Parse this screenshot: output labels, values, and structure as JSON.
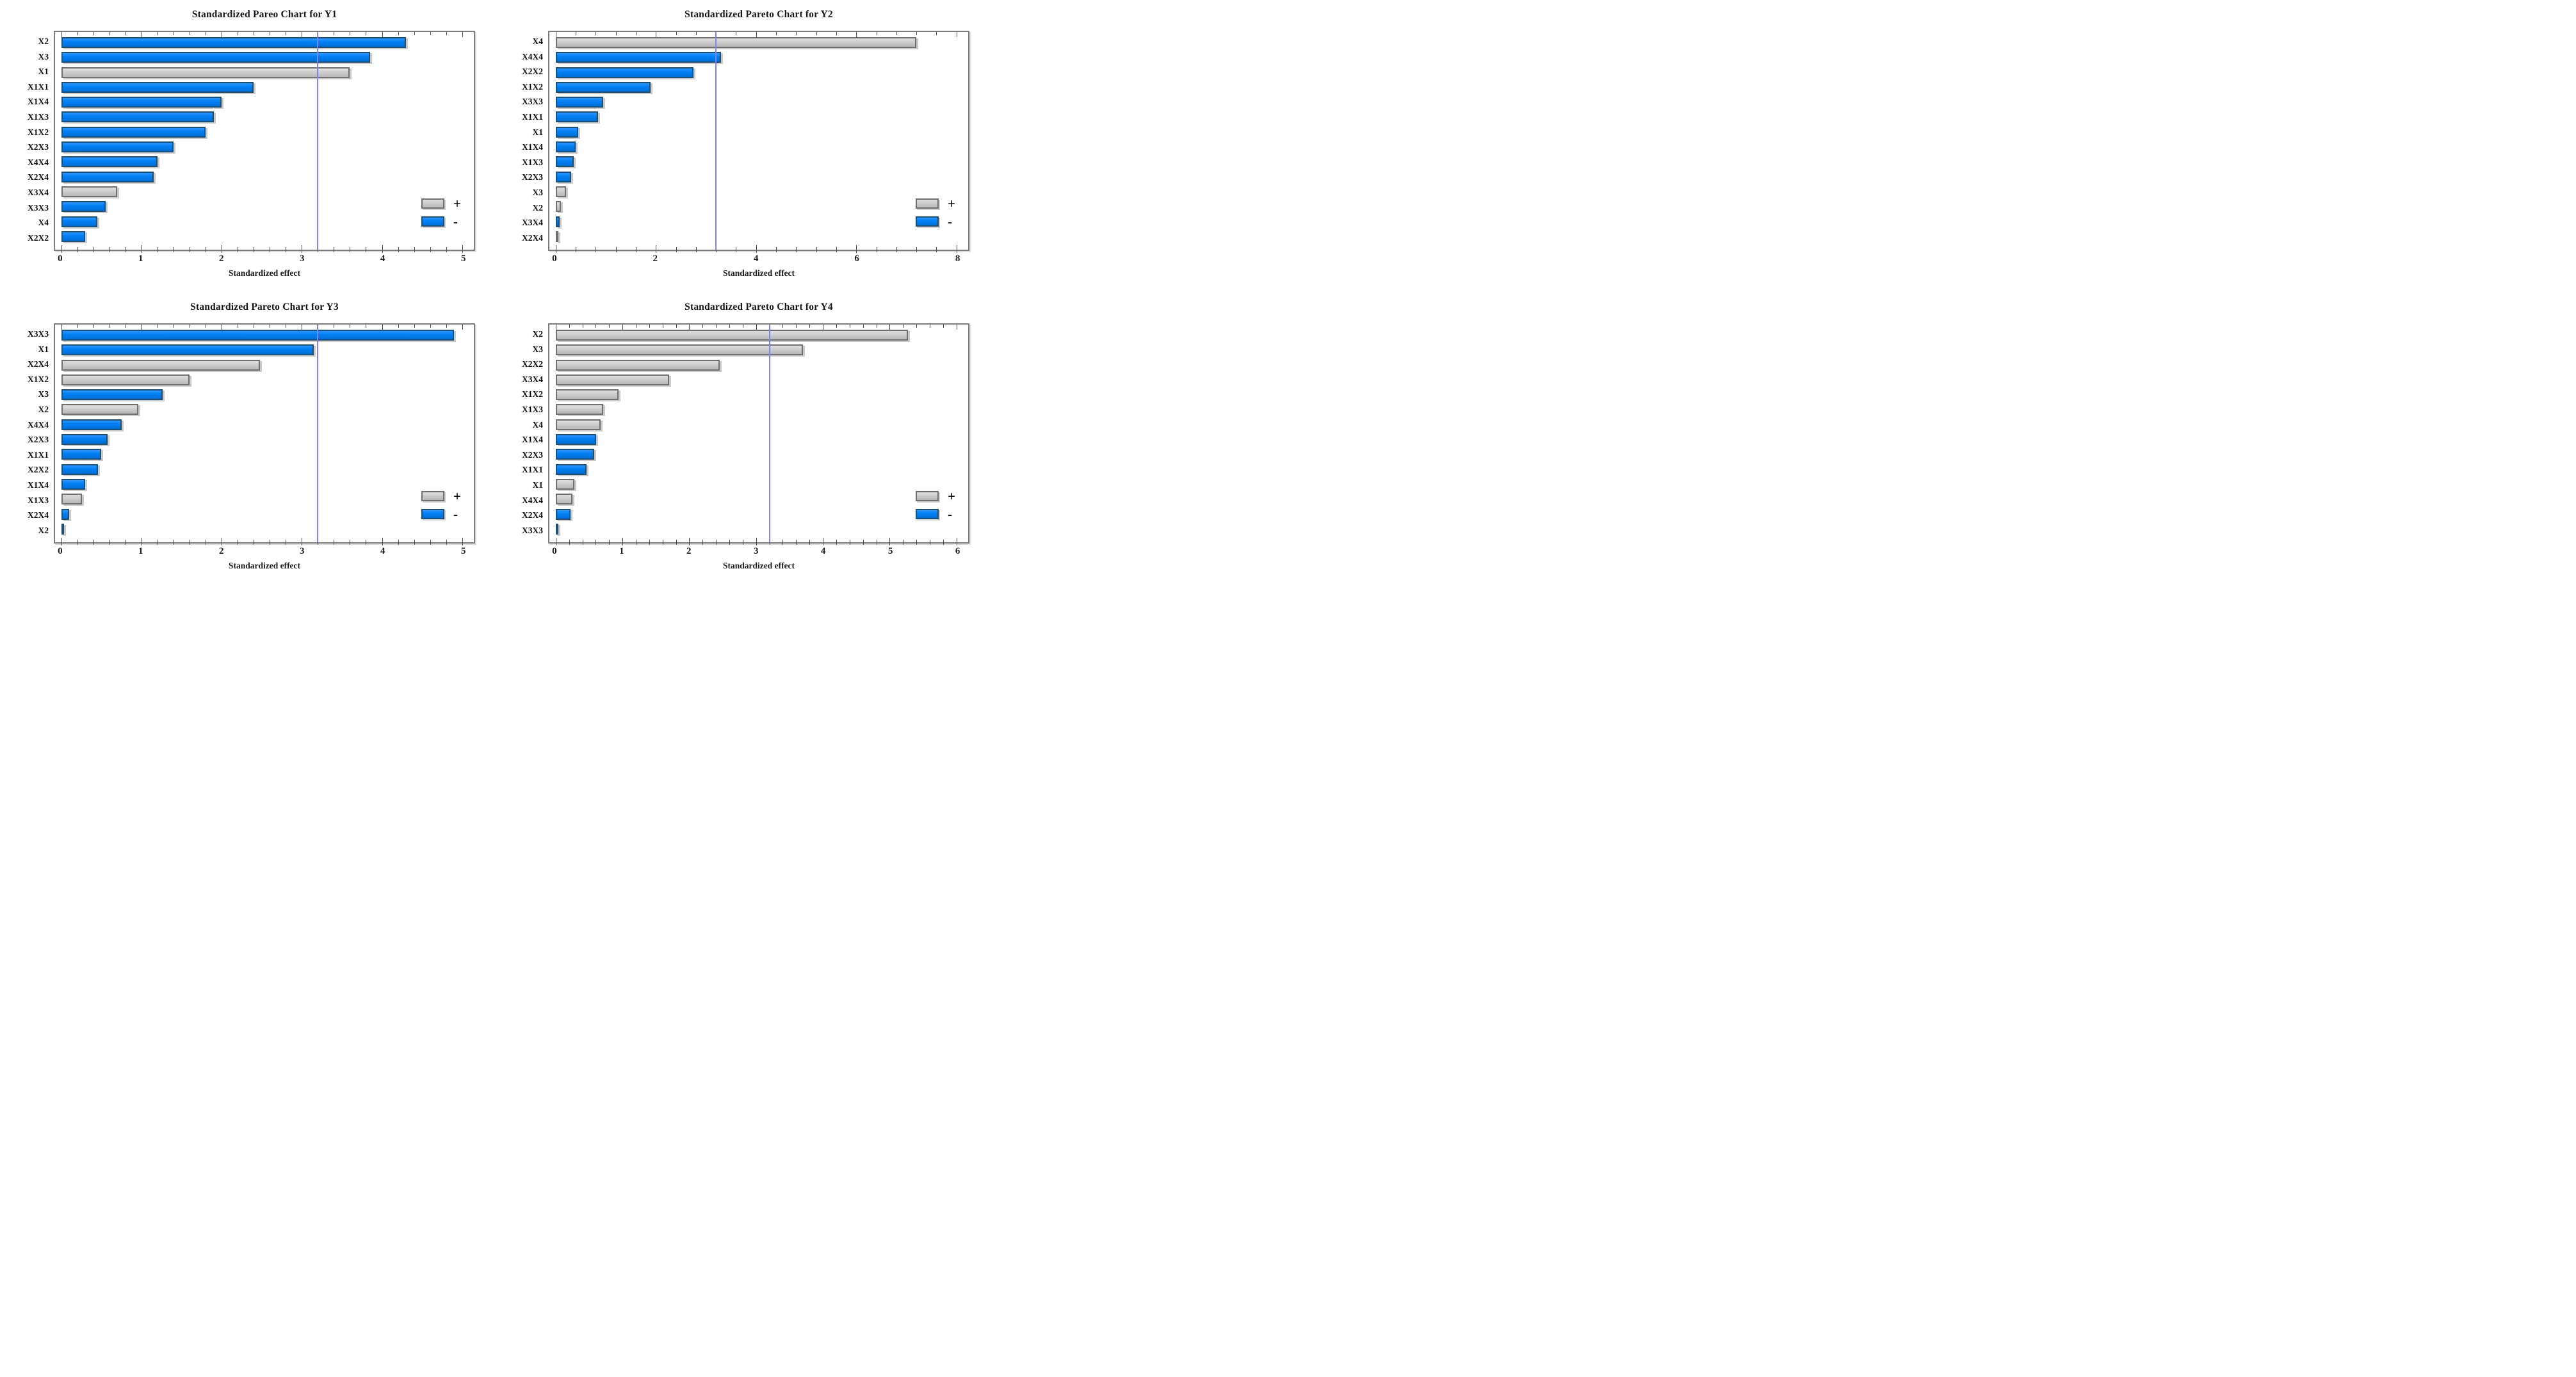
{
  "figure": {
    "x_axis_title": "Standardized effect",
    "legend_plus_symbol": "+",
    "legend_minus_symbol": "-"
  },
  "colors": {
    "minus_fill": "#0080f5",
    "minus_border": "#1d4e74",
    "plus_fill": "#c9c9c9",
    "plus_border": "#6f6f6f",
    "reference_line": "#8181fa",
    "plot_border": "#7d7d7d"
  },
  "chart_data": [
    {
      "type": "bar",
      "orientation": "horizontal",
      "title": "Standardized Pareo Chart for Y1",
      "xlabel": "Standardized effect",
      "xlim": [
        0,
        5
      ],
      "x_major_step": 1,
      "x_minor_step": 0.2,
      "x_tick_labels": [
        "0",
        "1",
        "2",
        "3",
        "4",
        "5"
      ],
      "reference_line": 3.2,
      "grid": false,
      "legend_position": "bottom-right",
      "legend": [
        {
          "label": "+",
          "color_key": "plus"
        },
        {
          "label": "-",
          "color_key": "minus"
        }
      ],
      "categories": [
        "X2",
        "X3",
        "X1",
        "X1X1",
        "X1X4",
        "X1X3",
        "X1X2",
        "X2X3",
        "X4X4",
        "X2X4",
        "X3X4",
        "X3X3",
        "X4",
        "X2X2"
      ],
      "values": [
        4.3,
        3.85,
        3.6,
        2.4,
        2.0,
        1.9,
        1.8,
        1.4,
        1.2,
        1.15,
        0.7,
        0.55,
        0.45,
        0.3
      ],
      "signs": [
        "minus",
        "minus",
        "plus",
        "minus",
        "minus",
        "minus",
        "minus",
        "minus",
        "minus",
        "minus",
        "plus",
        "minus",
        "minus",
        "minus"
      ]
    },
    {
      "type": "bar",
      "orientation": "horizontal",
      "title": "Standardized Pareto Chart for Y2",
      "xlabel": "Standardized effect",
      "xlim": [
        0,
        8
      ],
      "x_major_step": 2,
      "x_minor_step": 0.4,
      "x_tick_labels": [
        "0",
        "2",
        "4",
        "6",
        "8"
      ],
      "reference_line": 3.2,
      "grid": false,
      "legend_position": "bottom-right",
      "legend": [
        {
          "label": "+",
          "color_key": "plus"
        },
        {
          "label": "-",
          "color_key": "minus"
        }
      ],
      "categories": [
        "X4",
        "X4X4",
        "X2X2",
        "X1X2",
        "X3X3",
        "X1X1",
        "X1",
        "X1X4",
        "X1X3",
        "X2X3",
        "X3",
        "X2",
        "X3X4",
        "X2X4"
      ],
      "values": [
        7.2,
        3.3,
        2.75,
        1.9,
        0.95,
        0.85,
        0.45,
        0.4,
        0.36,
        0.31,
        0.21,
        0.11,
        0.08,
        0.02
      ],
      "signs": [
        "plus",
        "minus",
        "minus",
        "minus",
        "minus",
        "minus",
        "minus",
        "minus",
        "minus",
        "minus",
        "plus",
        "plus",
        "minus",
        "plus"
      ]
    },
    {
      "type": "bar",
      "orientation": "horizontal",
      "title": "Standardized Pareto Chart for Y3",
      "xlabel": "Standardized effect",
      "xlim": [
        0,
        5
      ],
      "x_major_step": 1,
      "x_minor_step": 0.2,
      "x_tick_labels": [
        "0",
        "1",
        "2",
        "3",
        "4",
        "5"
      ],
      "reference_line": 3.2,
      "grid": false,
      "legend_position": "bottom-right",
      "legend": [
        {
          "label": "+",
          "color_key": "plus"
        },
        {
          "label": "-",
          "color_key": "minus"
        }
      ],
      "categories": [
        "X3X3",
        "X1",
        "X2X4",
        "X1X2",
        "X3",
        "X2",
        "X4X4",
        "X2X3",
        "X1X1",
        "X2X2",
        "X1X4",
        "X1X3",
        "X2X4",
        "X2"
      ],
      "values": [
        4.9,
        3.15,
        2.48,
        1.6,
        1.26,
        0.96,
        0.75,
        0.58,
        0.5,
        0.46,
        0.3,
        0.26,
        0.1,
        0.03
      ],
      "signs": [
        "minus",
        "minus",
        "plus",
        "plus",
        "minus",
        "plus",
        "minus",
        "minus",
        "minus",
        "minus",
        "minus",
        "plus",
        "minus",
        "minus"
      ]
    },
    {
      "type": "bar",
      "orientation": "horizontal",
      "title": "Standardized Pareto Chart for Y4",
      "xlabel": "Standardized effect",
      "xlim": [
        0,
        6
      ],
      "x_major_step": 1,
      "x_minor_step": 0.2,
      "x_tick_labels": [
        "0",
        "1",
        "2",
        "3",
        "4",
        "5",
        "6"
      ],
      "reference_line": 3.2,
      "grid": false,
      "legend_position": "bottom-right",
      "legend": [
        {
          "label": "+",
          "color_key": "plus"
        },
        {
          "label": "-",
          "color_key": "minus"
        }
      ],
      "categories": [
        "X2",
        "X3",
        "X2X2",
        "X3X4",
        "X1X2",
        "X1X3",
        "X4",
        "X1X4",
        "X2X3",
        "X1X1",
        "X1",
        "X4X4",
        "X2X4",
        "X3X3"
      ],
      "values": [
        5.27,
        3.7,
        2.46,
        1.7,
        0.94,
        0.71,
        0.67,
        0.61,
        0.58,
        0.46,
        0.28,
        0.25,
        0.22,
        0.02
      ],
      "signs": [
        "plus",
        "plus",
        "plus",
        "plus",
        "plus",
        "plus",
        "plus",
        "minus",
        "minus",
        "minus",
        "plus",
        "plus",
        "minus",
        "minus"
      ]
    }
  ]
}
